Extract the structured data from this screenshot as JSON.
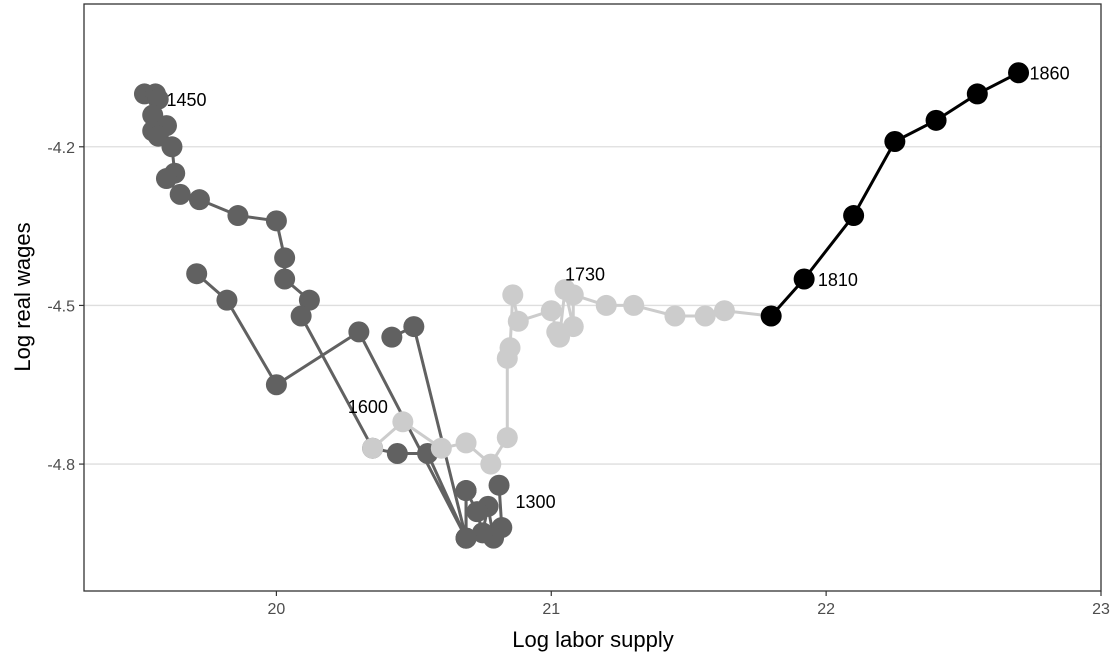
{
  "chart_data": {
    "type": "scatter",
    "title": "",
    "xlabel": "Log labor supply",
    "ylabel": "Log real wages",
    "xlim": [
      19.3,
      23.0
    ],
    "ylim": [
      -5.04,
      -3.93
    ],
    "x_ticks": [
      20,
      21,
      22,
      23
    ],
    "x_tick_labels": [
      "20",
      "21",
      "22",
      "23"
    ],
    "y_ticks": [
      -4.2,
      -4.5,
      -4.8
    ],
    "y_tick_labels": [
      "-4.2",
      "-4.5",
      "-4.8"
    ],
    "grid": "horizontal major",
    "legend": "none",
    "series": [
      {
        "color": "#616161",
        "points": [
          [
            20.81,
            -4.84
          ],
          [
            20.82,
            -4.92
          ],
          [
            20.79,
            -4.94
          ],
          [
            20.77,
            -4.88
          ],
          [
            20.75,
            -4.93
          ],
          [
            20.73,
            -4.89
          ],
          [
            20.69,
            -4.85
          ],
          [
            20.69,
            -4.94
          ],
          [
            20.5,
            -4.54
          ],
          [
            20.42,
            -4.56
          ]
        ]
      },
      {
        "color": "#616161",
        "points": [
          [
            19.52,
            -4.1
          ],
          [
            19.56,
            -4.1
          ],
          [
            19.57,
            -4.11
          ],
          [
            19.55,
            -4.14
          ],
          [
            19.6,
            -4.16
          ],
          [
            19.55,
            -4.17
          ],
          [
            19.57,
            -4.18
          ],
          [
            19.62,
            -4.2
          ],
          [
            19.63,
            -4.25
          ],
          [
            19.6,
            -4.26
          ],
          [
            19.65,
            -4.29
          ],
          [
            19.72,
            -4.3
          ],
          [
            19.86,
            -4.33
          ],
          [
            20.0,
            -4.34
          ],
          [
            20.03,
            -4.41
          ],
          [
            20.03,
            -4.45
          ],
          [
            20.12,
            -4.49
          ],
          [
            20.09,
            -4.52
          ],
          [
            20.35,
            -4.77
          ],
          [
            20.44,
            -4.78
          ],
          [
            20.55,
            -4.78
          ],
          [
            20.69,
            -4.94
          ],
          [
            20.69,
            -4.85
          ],
          [
            20.69,
            -4.94
          ],
          [
            20.3,
            -4.55
          ],
          [
            20.0,
            -4.65
          ],
          [
            19.82,
            -4.49
          ],
          [
            19.71,
            -4.44
          ]
        ]
      },
      {
        "color": "#cccccc",
        "points": [
          [
            20.35,
            -4.77
          ],
          [
            20.46,
            -4.72
          ],
          [
            20.6,
            -4.77
          ],
          [
            20.69,
            -4.76
          ],
          [
            20.78,
            -4.8
          ],
          [
            20.84,
            -4.75
          ],
          [
            20.84,
            -4.6
          ],
          [
            20.85,
            -4.58
          ],
          [
            20.86,
            -4.48
          ],
          [
            20.88,
            -4.53
          ],
          [
            21.0,
            -4.51
          ],
          [
            21.02,
            -4.55
          ],
          [
            21.03,
            -4.56
          ],
          [
            21.05,
            -4.47
          ],
          [
            21.08,
            -4.54
          ],
          [
            21.08,
            -4.48
          ],
          [
            21.2,
            -4.5
          ],
          [
            21.3,
            -4.5
          ],
          [
            21.45,
            -4.52
          ],
          [
            21.56,
            -4.52
          ],
          [
            21.63,
            -4.51
          ],
          [
            21.8,
            -4.52
          ]
        ]
      },
      {
        "color": "#000000",
        "points": [
          [
            21.8,
            -4.52
          ],
          [
            21.92,
            -4.45
          ],
          [
            22.1,
            -4.33
          ],
          [
            22.25,
            -4.19
          ],
          [
            22.4,
            -4.15
          ],
          [
            22.55,
            -4.1
          ],
          [
            22.7,
            -4.06
          ]
        ]
      }
    ],
    "annotations": [
      {
        "text": "1450",
        "x": 19.6,
        "y": -4.11
      },
      {
        "text": "1600",
        "x": 20.26,
        "y": -4.69
      },
      {
        "text": "1730",
        "x": 21.05,
        "y": -4.44
      },
      {
        "text": "1300",
        "x": 20.87,
        "y": -4.87
      },
      {
        "text": "1810",
        "x": 21.97,
        "y": -4.45
      },
      {
        "text": "1860",
        "x": 22.74,
        "y": -4.06
      }
    ]
  }
}
